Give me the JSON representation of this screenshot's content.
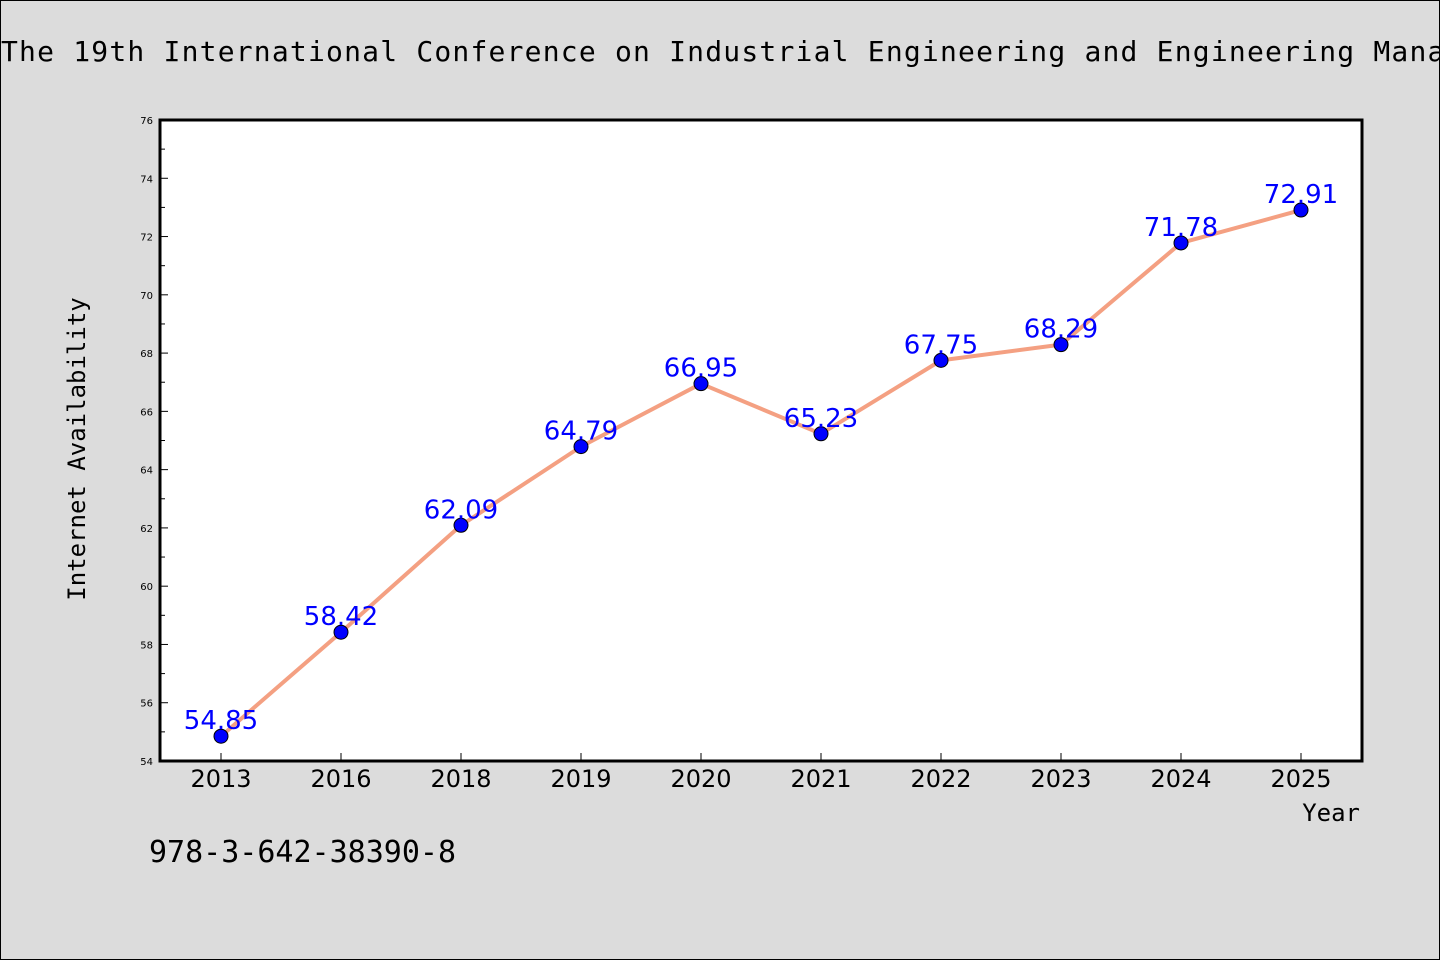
{
  "header": {
    "title": "The 19th International Conference on Industrial Engineering and Engineering Mana"
  },
  "footer": {
    "isbn": "978-3-642-38390-8"
  },
  "chart_data": {
    "type": "line",
    "title": "The 19th International Conference on Industrial Engineering and Engineering Mana",
    "xlabel": "Year",
    "ylabel": "Internet Availability",
    "categories": [
      "2013",
      "2016",
      "2018",
      "2019",
      "2020",
      "2021",
      "2022",
      "2023",
      "2024",
      "2025"
    ],
    "series": [
      {
        "values": [
          54.85,
          58.42,
          62.09,
          64.79,
          66.95,
          65.23,
          67.75,
          68.29,
          71.78,
          72.91
        ],
        "data_labels": [
          "54.85",
          "58.42",
          "62.09",
          "64.79",
          "66.95",
          "65.23",
          "67.75",
          "68.29",
          "71.78",
          "72.91"
        ],
        "line_color": "#f4a082",
        "marker_color": "#0000ff",
        "label_color": "#0000ff"
      }
    ],
    "ylim": [
      54,
      76
    ],
    "yticks": [
      54,
      56,
      58,
      60,
      62,
      64,
      66,
      68,
      70,
      72,
      74,
      76
    ],
    "grid": false,
    "legend": "none"
  }
}
